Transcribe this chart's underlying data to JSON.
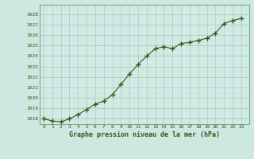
{
  "x": [
    0,
    1,
    2,
    3,
    4,
    5,
    6,
    7,
    8,
    9,
    10,
    11,
    12,
    13,
    14,
    15,
    16,
    17,
    18,
    19,
    20,
    21,
    22,
    23
  ],
  "y": [
    1018.0,
    1017.8,
    1017.7,
    1018.0,
    1018.4,
    1018.9,
    1019.4,
    1019.7,
    1020.3,
    1021.3,
    1022.3,
    1023.2,
    1024.0,
    1024.7,
    1024.9,
    1024.7,
    1025.2,
    1025.3,
    1025.5,
    1025.7,
    1026.2,
    1027.1,
    1027.4,
    1027.6
  ],
  "line_color": "#2d5a1b",
  "marker_color": "#2d5a1b",
  "bg_color": "#cce8e0",
  "plot_bg_color": "#d8f0ec",
  "grid_major_color": "#b0c8c0",
  "grid_minor_color": "#c8e0d8",
  "axis_label_color": "#2d5a1b",
  "border_color": "#7aaa7a",
  "title": "Graphe pression niveau de la mer (hPa)",
  "ylim_min": 1017.5,
  "ylim_max": 1028.5,
  "yticks": [
    1018,
    1019,
    1020,
    1021,
    1022,
    1023,
    1024,
    1025,
    1026,
    1027,
    1028
  ],
  "xticks": [
    0,
    1,
    2,
    3,
    4,
    5,
    6,
    7,
    8,
    9,
    10,
    11,
    12,
    13,
    14,
    15,
    16,
    17,
    18,
    19,
    20,
    21,
    22,
    23
  ]
}
